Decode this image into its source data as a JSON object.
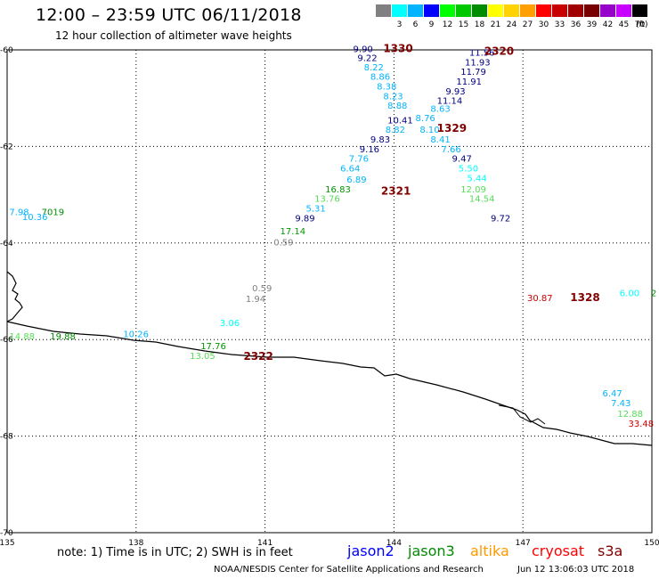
{
  "header": {
    "title": "12:00 – 23:59 UTC 06/11/2018",
    "subtitle": "12 hour collection of altimeter wave heights"
  },
  "legend": {
    "unit": "(ft)",
    "items": [
      {
        "label": "",
        "color": "#808080"
      },
      {
        "label": "3",
        "color": "#00ffff"
      },
      {
        "label": "6",
        "color": "#00b4ff"
      },
      {
        "label": "9",
        "color": "#0000ff"
      },
      {
        "label": "12",
        "color": "#00ff00"
      },
      {
        "label": "15",
        "color": "#00c800"
      },
      {
        "label": "18",
        "color": "#008c00"
      },
      {
        "label": "21",
        "color": "#ffff00"
      },
      {
        "label": "24",
        "color": "#ffd200"
      },
      {
        "label": "27",
        "color": "#ffa000"
      },
      {
        "label": "30",
        "color": "#ff0000"
      },
      {
        "label": "33",
        "color": "#c80000"
      },
      {
        "label": "36",
        "color": "#a00000"
      },
      {
        "label": "39",
        "color": "#780000"
      },
      {
        "label": "42",
        "color": "#9600c8"
      },
      {
        "label": "45",
        "color": "#c800ff"
      },
      {
        "label": "70",
        "color": "#000000"
      }
    ]
  },
  "map": {
    "lon_ticks": [
      "135",
      "138",
      "141",
      "144",
      "147",
      "150"
    ],
    "lat_ticks": [
      "-60",
      "-62",
      "-64",
      "-66",
      "-68",
      "-70"
    ]
  },
  "tracks": [
    {
      "label": "1330",
      "lon": 143.75,
      "lat": -60.05,
      "color": "#800000"
    },
    {
      "label": "2320",
      "lon": 146.1,
      "lat": -60.1,
      "color": "#800000"
    },
    {
      "label": "1329",
      "lon": 145.0,
      "lat": -61.7,
      "color": "#800000"
    },
    {
      "label": "2321",
      "lon": 143.7,
      "lat": -63.0,
      "color": "#800000"
    },
    {
      "label": "2322",
      "lon": 140.5,
      "lat": -66.42,
      "color": "#800000"
    },
    {
      "label": "1328",
      "lon": 148.1,
      "lat": -65.2,
      "color": "#800000"
    }
  ],
  "observations": [
    {
      "v": "9.90",
      "lon": 143.05,
      "lat": -60.05,
      "c": "#000080"
    },
    {
      "v": "9.22",
      "lon": 143.15,
      "lat": -60.23,
      "c": "#000080"
    },
    {
      "v": "8.22",
      "lon": 143.3,
      "lat": -60.42,
      "c": "#00b4ff"
    },
    {
      "v": "8.86",
      "lon": 143.45,
      "lat": -60.62,
      "c": "#00b4ff"
    },
    {
      "v": "8.38",
      "lon": 143.6,
      "lat": -60.82,
      "c": "#00b4ff"
    },
    {
      "v": "8.23",
      "lon": 143.75,
      "lat": -61.02,
      "c": "#00b4ff"
    },
    {
      "v": "8.88",
      "lon": 143.85,
      "lat": -61.22,
      "c": "#00b4ff"
    },
    {
      "v": "10.41",
      "lon": 143.85,
      "lat": -61.52,
      "c": "#000080"
    },
    {
      "v": "8.82",
      "lon": 143.8,
      "lat": -61.72,
      "c": "#00b4ff"
    },
    {
      "v": "9.83",
      "lon": 143.45,
      "lat": -61.92,
      "c": "#000080"
    },
    {
      "v": "9.16",
      "lon": 143.2,
      "lat": -62.12,
      "c": "#000080"
    },
    {
      "v": "7.76",
      "lon": 142.95,
      "lat": -62.32,
      "c": "#00b4ff"
    },
    {
      "v": "6.64",
      "lon": 142.75,
      "lat": -62.52,
      "c": "#00b4ff"
    },
    {
      "v": "6.89",
      "lon": 142.9,
      "lat": -62.75,
      "c": "#00b4ff"
    },
    {
      "v": "16.83",
      "lon": 142.4,
      "lat": -62.95,
      "c": "#009600"
    },
    {
      "v": "13.76",
      "lon": 142.15,
      "lat": -63.15,
      "c": "#55dd55"
    },
    {
      "v": "5.31",
      "lon": 141.95,
      "lat": -63.35,
      "c": "#00b4ff"
    },
    {
      "v": "9.89",
      "lon": 141.7,
      "lat": -63.55,
      "c": "#000080"
    },
    {
      "v": "17.14",
      "lon": 141.35,
      "lat": -63.82,
      "c": "#009600"
    },
    {
      "v": "0.59",
      "lon": 141.2,
      "lat": -64.05,
      "c": "#808080"
    },
    {
      "v": "0.59",
      "lon": 140.7,
      "lat": -65.0,
      "c": "#808080"
    },
    {
      "v": "1.94",
      "lon": 140.55,
      "lat": -65.22,
      "c": "#808080"
    },
    {
      "v": "3.06",
      "lon": 139.95,
      "lat": -65.72,
      "c": "#00ffff"
    },
    {
      "v": "17.76",
      "lon": 139.5,
      "lat": -66.2,
      "c": "#009600"
    },
    {
      "v": "13.05",
      "lon": 139.25,
      "lat": -66.4,
      "c": "#55dd55"
    },
    {
      "v": "11.56",
      "lon": 145.75,
      "lat": -60.12,
      "c": "#000080"
    },
    {
      "v": "11.93",
      "lon": 145.65,
      "lat": -60.32,
      "c": "#000080"
    },
    {
      "v": "11.79",
      "lon": 145.55,
      "lat": -60.52,
      "c": "#000080"
    },
    {
      "v": "11.91",
      "lon": 145.45,
      "lat": -60.72,
      "c": "#000080"
    },
    {
      "v": "9.93",
      "lon": 145.2,
      "lat": -60.92,
      "c": "#000080"
    },
    {
      "v": "11.14",
      "lon": 145.0,
      "lat": -61.12,
      "c": "#000080"
    },
    {
      "v": "8.63",
      "lon": 144.85,
      "lat": -61.28,
      "c": "#00b4ff"
    },
    {
      "v": "8.76",
      "lon": 144.5,
      "lat": -61.48,
      "c": "#00b4ff"
    },
    {
      "v": "8.10",
      "lon": 144.6,
      "lat": -61.72,
      "c": "#00b4ff"
    },
    {
      "v": "8.41",
      "lon": 144.85,
      "lat": -61.92,
      "c": "#00b4ff"
    },
    {
      "v": "7.66",
      "lon": 145.1,
      "lat": -62.12,
      "c": "#00b4ff"
    },
    {
      "v": "9.47",
      "lon": 145.35,
      "lat": -62.32,
      "c": "#000080"
    },
    {
      "v": "5.50",
      "lon": 145.5,
      "lat": -62.52,
      "c": "#00ffff"
    },
    {
      "v": "5.44",
      "lon": 145.7,
      "lat": -62.72,
      "c": "#00ffff"
    },
    {
      "v": "12.09",
      "lon": 145.55,
      "lat": -62.95,
      "c": "#55dd55"
    },
    {
      "v": "14.54",
      "lon": 145.75,
      "lat": -63.15,
      "c": "#55dd55"
    },
    {
      "v": "9.72",
      "lon": 146.25,
      "lat": -63.55,
      "c": "#000080"
    },
    {
      "v": "30.87",
      "lon": 147.1,
      "lat": -65.2,
      "c": "#c80000"
    },
    {
      "v": "6.00",
      "lon": 149.25,
      "lat": -65.1,
      "c": "#00ffff"
    },
    {
      "v": "2",
      "lon": 149.98,
      "lat": -65.1,
      "c": "#009600"
    },
    {
      "v": "6.47",
      "lon": 148.85,
      "lat": -67.18,
      "c": "#00b4ff"
    },
    {
      "v": "7.43",
      "lon": 149.05,
      "lat": -67.38,
      "c": "#00b4ff"
    },
    {
      "v": "12.88",
      "lon": 149.2,
      "lat": -67.6,
      "c": "#55dd55"
    },
    {
      "v": "33.48",
      "lon": 149.45,
      "lat": -67.8,
      "c": "#c80000"
    },
    {
      "v": "7.98",
      "lon": 135.05,
      "lat": -63.42,
      "c": "#00b4ff"
    },
    {
      "v": "7019",
      "lon": 135.8,
      "lat": -63.42,
      "c": "#008c00"
    },
    {
      "v": "10.36",
      "lon": 135.35,
      "lat": -63.52,
      "c": "#00b4ff"
    },
    {
      "v": "14.88",
      "lon": 135.05,
      "lat": -66.0,
      "c": "#55dd55"
    },
    {
      "v": "19.88",
      "lon": 136.0,
      "lat": -66.0,
      "c": "#008c00"
    },
    {
      "v": "10.26",
      "lon": 137.7,
      "lat": -65.95,
      "c": "#00b4ff"
    }
  ],
  "footer": {
    "note": "note:  1)  Time is in UTC;  2)  SWH is in feet",
    "satellites": [
      {
        "name": "jason2",
        "color": "#0000ff"
      },
      {
        "name": "jason3",
        "color": "#008c00"
      },
      {
        "name": "altika",
        "color": "#ff9900"
      },
      {
        "name": "cryosat",
        "color": "#ff0000"
      },
      {
        "name": "s3a",
        "color": "#800000"
      }
    ],
    "credit": "NOAA/NESDIS Center for Satellite Applications and Research",
    "timestamp": "Jun 12 13:06:03 UTC 2018"
  }
}
